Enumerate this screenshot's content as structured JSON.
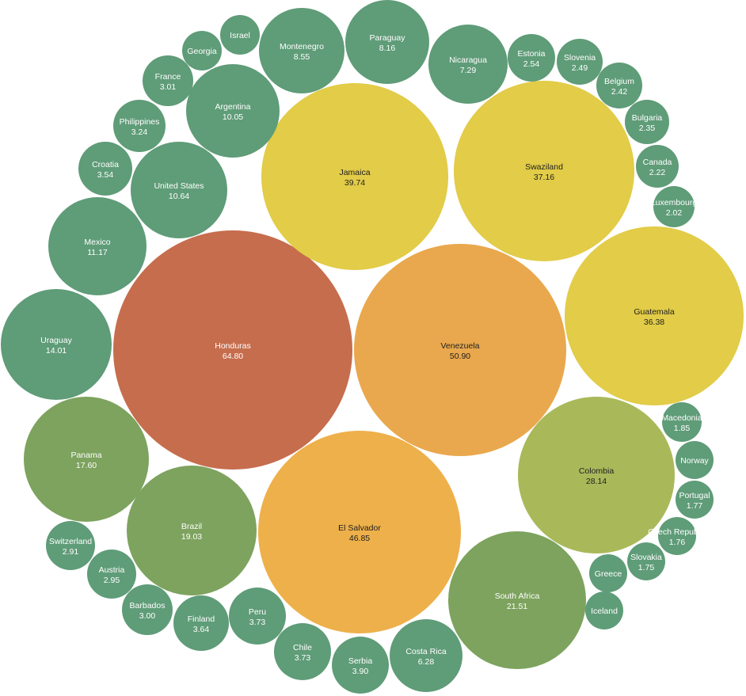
{
  "chart_data": {
    "type": "bubble",
    "title": "",
    "color_scale": [
      "#5f9c78",
      "#7da35e",
      "#a9b95a",
      "#e2cc48",
      "#eeb04a",
      "#e9a84d",
      "#c66d4d"
    ],
    "items": [
      {
        "name": "Honduras",
        "value": 64.8,
        "label": "64.80"
      },
      {
        "name": "Venezuela",
        "value": 50.9,
        "label": "50.90"
      },
      {
        "name": "El Salvador",
        "value": 46.85,
        "label": "46.85"
      },
      {
        "name": "Jamaica",
        "value": 39.74,
        "label": "39.74"
      },
      {
        "name": "Swaziland",
        "value": 37.16,
        "label": "37.16"
      },
      {
        "name": "Guatemala",
        "value": 36.38,
        "label": "36.38"
      },
      {
        "name": "Colombia",
        "value": 28.14,
        "label": "28.14"
      },
      {
        "name": "South Africa",
        "value": 21.51,
        "label": "21.51"
      },
      {
        "name": "Brazil",
        "value": 19.03,
        "label": "19.03"
      },
      {
        "name": "Panama",
        "value": 17.6,
        "label": "17.60"
      },
      {
        "name": "Uraguay",
        "value": 14.01,
        "label": "14.01"
      },
      {
        "name": "Mexico",
        "value": 11.17,
        "label": "11.17"
      },
      {
        "name": "United States",
        "value": 10.64,
        "label": "10.64"
      },
      {
        "name": "Argentina",
        "value": 10.05,
        "label": "10.05"
      },
      {
        "name": "Montenegro",
        "value": 8.55,
        "label": "8.55"
      },
      {
        "name": "Paraguay",
        "value": 8.16,
        "label": "8.16"
      },
      {
        "name": "Nicaragua",
        "value": 7.29,
        "label": "7.29"
      },
      {
        "name": "Costa Rica",
        "value": 6.28,
        "label": "6.28"
      },
      {
        "name": "Serbia",
        "value": 3.9,
        "label": "3.90"
      },
      {
        "name": "Peru",
        "value": 3.73,
        "label": "3.73"
      },
      {
        "name": "Chile",
        "value": 3.73,
        "label": "3.73"
      },
      {
        "name": "Finland",
        "value": 3.64,
        "label": "3.64"
      },
      {
        "name": "Croatia",
        "value": 3.54,
        "label": "3.54"
      },
      {
        "name": "Philippines",
        "value": 3.24,
        "label": "3.24"
      },
      {
        "name": "France",
        "value": 3.01,
        "label": "3.01"
      },
      {
        "name": "Barbados",
        "value": 3.0,
        "label": "3.00"
      },
      {
        "name": "Austria",
        "value": 2.95,
        "label": "2.95"
      },
      {
        "name": "Switzerland",
        "value": 2.91,
        "label": "2.91"
      },
      {
        "name": "Estonia",
        "value": 2.54,
        "label": "2.54"
      },
      {
        "name": "Slovenia",
        "value": 2.49,
        "label": "2.49"
      },
      {
        "name": "Belgium",
        "value": 2.42,
        "label": "2.42"
      },
      {
        "name": "Bulgaria",
        "value": 2.35,
        "label": "2.35"
      },
      {
        "name": "Canada",
        "value": 2.22,
        "label": "2.22"
      },
      {
        "name": "Luxembourg",
        "value": 2.02,
        "label": "2.02"
      },
      {
        "name": "Macedonia",
        "value": 1.85,
        "label": "1.85"
      },
      {
        "name": "Portugal",
        "value": 1.77,
        "label": "1.77"
      },
      {
        "name": "Czech Republic",
        "value": 1.76,
        "label": "1.76"
      },
      {
        "name": "Slovakia",
        "value": 1.75,
        "label": "1.75"
      },
      {
        "name": "Norway",
        "value": 1.6,
        "label": ""
      },
      {
        "name": "Greece",
        "value": 1.6,
        "label": ""
      },
      {
        "name": "Iceland",
        "value": 1.6,
        "label": ""
      },
      {
        "name": "Georgia",
        "value": 1.5,
        "label": ""
      },
      {
        "name": "Israel",
        "value": 1.5,
        "label": ""
      }
    ]
  }
}
